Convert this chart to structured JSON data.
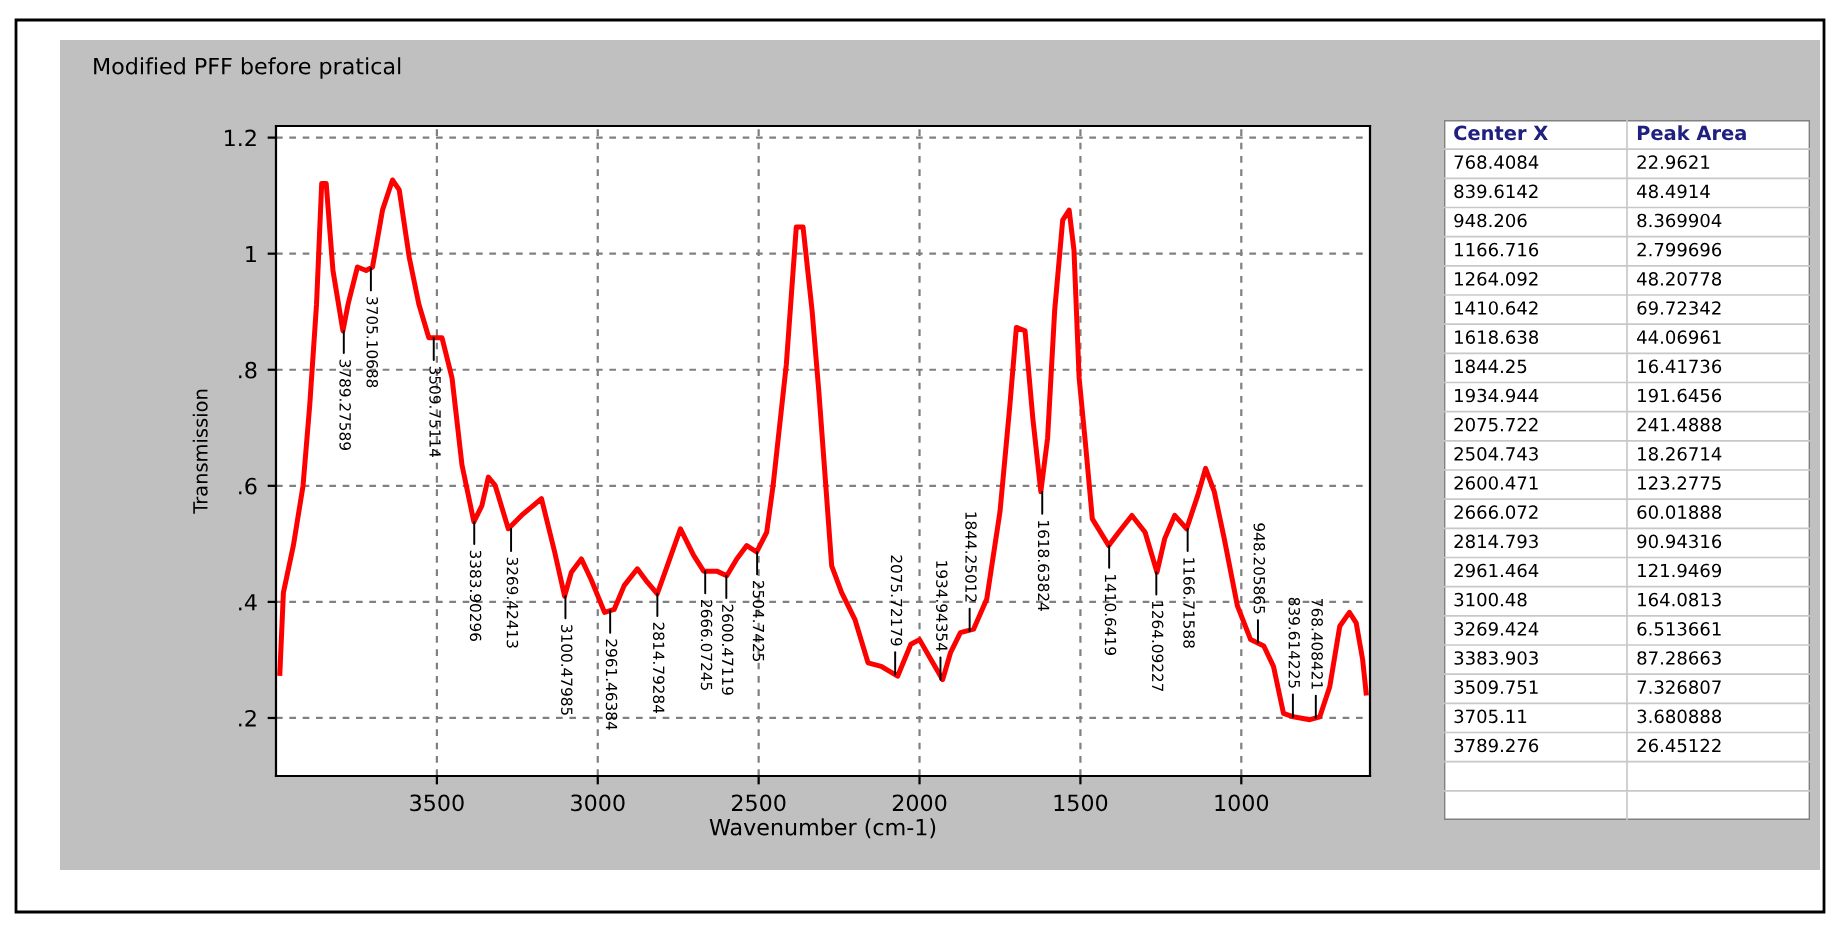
{
  "chart_data": [
    {
      "type": "line",
      "title": "Modified PFF before pratical",
      "xlabel": "Wavenumber (cm-1)",
      "ylabel": "Transmission",
      "xlim": [
        4000,
        600
      ],
      "ylim": [
        0.1,
        1.22
      ],
      "xticks": [
        3500,
        3000,
        2500,
        2000,
        1500,
        1000
      ],
      "yticks": [
        {
          "value": 0.2,
          "label": ".2"
        },
        {
          "value": 0.4,
          "label": ".4"
        },
        {
          "value": 0.6,
          "label": ".6"
        },
        {
          "value": 0.8,
          "label": ".8"
        },
        1,
        1.2
      ],
      "grid": true,
      "legend": false,
      "series": [
        {
          "color": "#ff0000",
          "x": [
            3988,
            3977,
            3946,
            3916,
            3895,
            3874,
            3858,
            3844,
            3823,
            3792,
            3776,
            3747,
            3720,
            3700,
            3669,
            3638,
            3617,
            3586,
            3556,
            3525,
            3484,
            3453,
            3422,
            3385,
            3360,
            3340,
            3319,
            3278,
            3237,
            3175,
            3134,
            3103,
            3082,
            3051,
            3021,
            2979,
            2949,
            2918,
            2877,
            2846,
            2815,
            2784,
            2743,
            2702,
            2671,
            2630,
            2599,
            2568,
            2537,
            2506,
            2475,
            2455,
            2414,
            2383,
            2362,
            2334,
            2313,
            2293,
            2273,
            2242,
            2201,
            2160,
            2119,
            2068,
            2027,
            2000,
            1965,
            1928,
            1904,
            1873,
            1832,
            1791,
            1750,
            1719,
            1699,
            1672,
            1648,
            1623,
            1602,
            1580,
            1555,
            1535,
            1520,
            1504,
            1484,
            1463,
            1412,
            1381,
            1340,
            1299,
            1262,
            1238,
            1207,
            1170,
            1135,
            1111,
            1084,
            1053,
            1012,
            971,
            930,
            900,
            869,
            838,
            787,
            756,
            725,
            694,
            664,
            643,
            623,
            612
          ],
          "values": [
            0.277,
            0.416,
            0.497,
            0.6,
            0.74,
            0.913,
            1.121,
            1.121,
            0.971,
            0.867,
            0.913,
            0.977,
            0.971,
            0.977,
            1.075,
            1.127,
            1.11,
            0.994,
            0.913,
            0.855,
            0.855,
            0.786,
            0.636,
            0.538,
            0.566,
            0.615,
            0.601,
            0.526,
            0.549,
            0.578,
            0.486,
            0.41,
            0.451,
            0.474,
            0.439,
            0.382,
            0.387,
            0.428,
            0.457,
            0.434,
            0.414,
            0.462,
            0.526,
            0.48,
            0.453,
            0.453,
            0.445,
            0.474,
            0.497,
            0.486,
            0.52,
            0.601,
            0.809,
            1.046,
            1.046,
            0.902,
            0.763,
            0.613,
            0.462,
            0.416,
            0.37,
            0.295,
            0.289,
            0.272,
            0.327,
            0.335,
            0.301,
            0.266,
            0.312,
            0.347,
            0.353,
            0.405,
            0.555,
            0.74,
            0.873,
            0.867,
            0.717,
            0.59,
            0.682,
            0.902,
            1.058,
            1.075,
            1.006,
            0.786,
            0.671,
            0.543,
            0.497,
            0.52,
            0.549,
            0.52,
            0.451,
            0.509,
            0.549,
            0.526,
            0.584,
            0.63,
            0.59,
            0.509,
            0.393,
            0.335,
            0.324,
            0.289,
            0.208,
            0.202,
            0.197,
            0.202,
            0.254,
            0.358,
            0.382,
            0.364,
            0.301,
            0.243
          ]
        }
      ],
      "annotations": [
        {
          "text": "3789.27589",
          "x": 3789.27589,
          "y": 0.867
        },
        {
          "text": "3705.10688",
          "x": 3705.10688,
          "y": 0.975
        },
        {
          "text": "3509.75114",
          "x": 3509.75114,
          "y": 0.855
        },
        {
          "text": "3383.90296",
          "x": 3383.90296,
          "y": 0.538
        },
        {
          "text": "3269.42413",
          "x": 3269.42413,
          "y": 0.526
        },
        {
          "text": "3100.47985",
          "x": 3100.47985,
          "y": 0.41
        },
        {
          "text": "2961.46384",
          "x": 2961.46384,
          "y": 0.385
        },
        {
          "text": "2814.79284",
          "x": 2814.79284,
          "y": 0.414
        },
        {
          "text": "2666.07245",
          "x": 2666.07245,
          "y": 0.453
        },
        {
          "text": "2600.47119",
          "x": 2600.47119,
          "y": 0.445
        },
        {
          "text": "2504.7425",
          "x": 2504.7425,
          "y": 0.486
        },
        {
          "text": "2075.72179",
          "x": 2075.72179,
          "y": 0.275
        },
        {
          "text": "1934.94354",
          "x": 1934.94354,
          "y": 0.266
        },
        {
          "text": "1844.25012",
          "x": 1844.25012,
          "y": 0.35
        },
        {
          "text": "1618.63824",
          "x": 1618.63824,
          "y": 0.59
        },
        {
          "text": "1410.6419",
          "x": 1410.6419,
          "y": 0.497
        },
        {
          "text": "1264.09227",
          "x": 1264.09227,
          "y": 0.451
        },
        {
          "text": "1166.71588",
          "x": 1166.71588,
          "y": 0.526
        },
        {
          "text": "948.205865",
          "x": 948.205865,
          "y": 0.33
        },
        {
          "text": "839.614225",
          "x": 839.614225,
          "y": 0.202
        },
        {
          "text": "768.408421",
          "x": 768.408421,
          "y": 0.2
        }
      ]
    },
    {
      "type": "other",
      "xlabel": "Center X",
      "data_labels": true,
      "categories": [
        "768.4084",
        "839.6142",
        "948.206",
        "1166.716",
        "1264.092",
        "1410.642",
        "1618.638",
        "1844.25",
        "1934.944",
        "2075.722",
        "2504.743",
        "2600.471",
        "2666.072",
        "2814.793",
        "2961.464",
        "3100.48",
        "3269.424",
        "3383.903",
        "3509.751",
        "3705.11",
        "3789.276"
      ],
      "series": [
        {
          "name": "Peak Area",
          "values": [
            22.9621,
            48.4914,
            8.369904,
            2.799696,
            48.20778,
            69.72342,
            44.06961,
            16.41736,
            191.6456,
            241.4888,
            18.26714,
            123.2775,
            60.01888,
            90.94316,
            121.9469,
            164.0813,
            6.513661,
            87.28663,
            7.326807,
            3.680888,
            26.45122
          ]
        }
      ]
    }
  ]
}
